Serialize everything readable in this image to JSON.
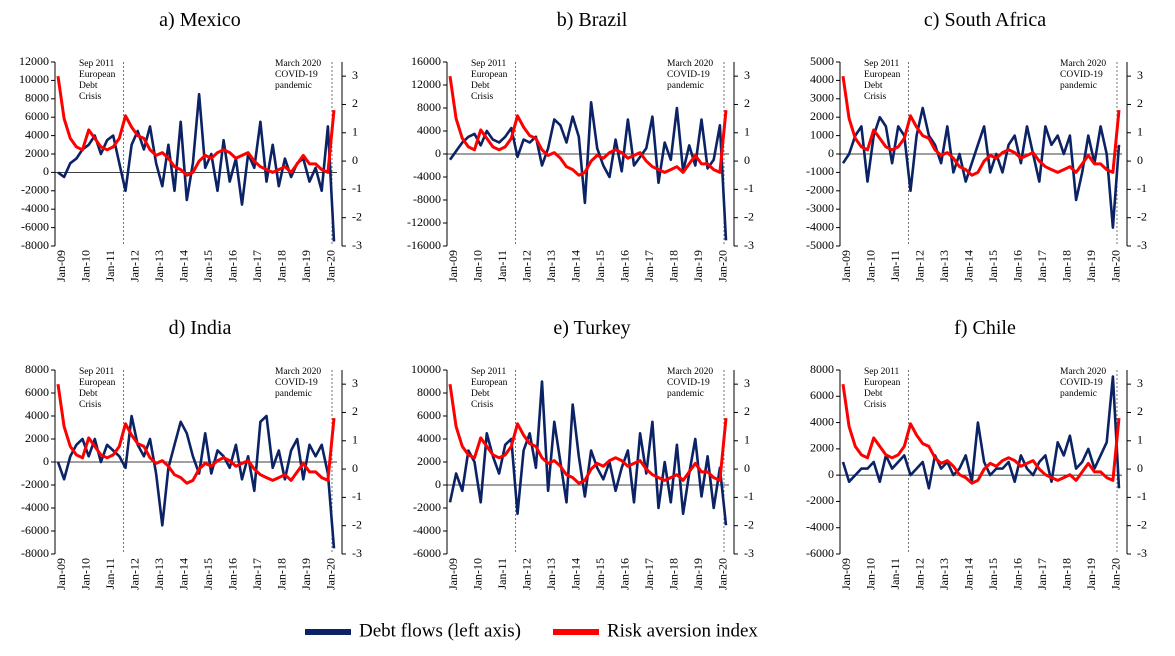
{
  "legend": [
    {
      "name": "Debt flows (left axis)",
      "color": "#0b2265"
    },
    {
      "name": "Risk aversion index",
      "color": "#ff0000"
    }
  ],
  "chart_data": [
    {
      "type": "line",
      "title": "a) Mexico",
      "categories": [
        "Jan-09",
        null,
        null,
        null,
        "Jan-10",
        null,
        null,
        null,
        "Jan-11",
        null,
        null,
        null,
        "Jan-12",
        null,
        null,
        null,
        "Jan-13",
        null,
        null,
        null,
        "Jan-14",
        null,
        null,
        null,
        "Jan-15",
        null,
        null,
        null,
        "Jan-16",
        null,
        null,
        null,
        "Jan-17",
        null,
        null,
        null,
        "Jan-18",
        null,
        null,
        null,
        "Jan-19",
        null,
        null,
        null,
        "Jan-20",
        null
      ],
      "annotations": [
        [
          "Sep 2011",
          "European",
          "Debt",
          "Crisis"
        ],
        [
          "March 2020",
          "COVID-19",
          "pandemic"
        ]
      ],
      "ylim": [
        -8000,
        12000
      ],
      "yticks": [
        -8000,
        -6000,
        -4000,
        -2000,
        0,
        2000,
        4000,
        6000,
        8000,
        10000,
        12000
      ],
      "y2lim": [
        -3,
        3.5
      ],
      "y2ticks": [
        -3,
        -2,
        -1,
        0,
        1,
        2,
        3
      ],
      "series": [
        {
          "values": [
            0,
            -500,
            1000,
            1500,
            2500,
            3000,
            4000,
            2000,
            3500,
            4000,
            1000,
            -2000,
            3000,
            4500,
            2500,
            5000,
            1000,
            -1500,
            3000,
            -2000,
            5500,
            -3000,
            1000,
            8500,
            500,
            2000,
            -2000,
            3500,
            -1000,
            1500,
            -3500,
            2000,
            500,
            5500,
            -1000,
            3000,
            -1500,
            1500,
            -500,
            1000,
            1500,
            -1000,
            500,
            -2000,
            5000,
            -7500
          ]
        },
        {
          "axis": "y2",
          "values": [
            3.0,
            1.5,
            0.8,
            0.5,
            0.4,
            1.1,
            0.8,
            0.5,
            0.4,
            0.5,
            0.8,
            1.6,
            1.2,
            0.9,
            0.8,
            0.4,
            0.2,
            0.3,
            0.1,
            -0.2,
            -0.3,
            -0.5,
            -0.4,
            0.0,
            0.2,
            0.1,
            0.3,
            0.4,
            0.3,
            0.1,
            0.2,
            0.3,
            0.0,
            -0.2,
            -0.3,
            -0.4,
            -0.3,
            -0.2,
            -0.4,
            -0.1,
            0.2,
            -0.1,
            -0.1,
            -0.3,
            -0.4,
            1.8
          ]
        }
      ]
    },
    {
      "type": "line",
      "title": "b) Brazil",
      "categories": [
        "Jan-09",
        null,
        null,
        null,
        "Jan-10",
        null,
        null,
        null,
        "Jan-11",
        null,
        null,
        null,
        "Jan-12",
        null,
        null,
        null,
        "Jan-13",
        null,
        null,
        null,
        "Jan-14",
        null,
        null,
        null,
        "Jan-15",
        null,
        null,
        null,
        "Jan-16",
        null,
        null,
        null,
        "Jan-17",
        null,
        null,
        null,
        "Jan-18",
        null,
        null,
        null,
        "Jan-19",
        null,
        null,
        null,
        "Jan-20",
        null
      ],
      "annotations": [
        [
          "Sep 2011",
          "European",
          "Debt",
          "Crisis"
        ],
        [
          "March 2020",
          "COVID-19",
          "pandemic"
        ]
      ],
      "ylim": [
        -16000,
        16000
      ],
      "yticks": [
        -16000,
        -12000,
        -8000,
        -4000,
        0,
        4000,
        8000,
        12000,
        16000
      ],
      "y2lim": [
        -3,
        3.5
      ],
      "y2ticks": [
        -3,
        -2,
        -1,
        0,
        1,
        2,
        3
      ],
      "series": [
        {
          "values": [
            -1000,
            500,
            2000,
            3000,
            3500,
            1500,
            4000,
            2500,
            2000,
            3000,
            4500,
            -500,
            2500,
            2000,
            3000,
            -2000,
            1000,
            6000,
            5000,
            2000,
            6500,
            3000,
            -8500,
            9000,
            1000,
            -2000,
            -4000,
            2500,
            -3000,
            6000,
            -2000,
            -500,
            1000,
            6500,
            -5000,
            2000,
            -1000,
            8000,
            -3000,
            1500,
            -2000,
            6000,
            -2500,
            -1000,
            5000,
            -15000
          ]
        },
        {
          "axis": "y2",
          "values": [
            3.0,
            1.5,
            0.8,
            0.5,
            0.4,
            1.1,
            0.8,
            0.5,
            0.4,
            0.5,
            0.8,
            1.6,
            1.2,
            0.9,
            0.8,
            0.4,
            0.2,
            0.3,
            0.1,
            -0.2,
            -0.3,
            -0.5,
            -0.4,
            0.0,
            0.2,
            0.1,
            0.3,
            0.4,
            0.3,
            0.1,
            0.2,
            0.3,
            0.0,
            -0.2,
            -0.3,
            -0.4,
            -0.3,
            -0.2,
            -0.4,
            -0.1,
            0.2,
            -0.1,
            -0.1,
            -0.3,
            -0.4,
            1.8
          ]
        }
      ]
    },
    {
      "type": "line",
      "title": "c) South Africa",
      "categories": [
        "Jan-09",
        null,
        null,
        null,
        "Jan-10",
        null,
        null,
        null,
        "Jan-11",
        null,
        null,
        null,
        "Jan-12",
        null,
        null,
        null,
        "Jan-13",
        null,
        null,
        null,
        "Jan-14",
        null,
        null,
        null,
        "Jan-15",
        null,
        null,
        null,
        "Jan-16",
        null,
        null,
        null,
        "Jan-17",
        null,
        null,
        null,
        "Jan-18",
        null,
        null,
        null,
        "Jan-19",
        null,
        null,
        null,
        "Jan-20",
        null
      ],
      "annotations": [
        [
          "Sep 2011",
          "European",
          "Debt",
          "Crisis"
        ],
        [
          "March 2020",
          "COVID-19",
          "pandemic"
        ]
      ],
      "ylim": [
        -5000,
        5000
      ],
      "yticks": [
        -5000,
        -4000,
        -3000,
        -2000,
        -1000,
        0,
        1000,
        2000,
        3000,
        4000,
        5000
      ],
      "y2lim": [
        -3,
        3.5
      ],
      "y2ticks": [
        -3,
        -2,
        -1,
        0,
        1,
        2,
        3
      ],
      "series": [
        {
          "values": [
            -500,
            0,
            1000,
            1500,
            -1500,
            1000,
            2000,
            1500,
            -500,
            1500,
            1000,
            -2000,
            1000,
            2500,
            1000,
            500,
            -500,
            1500,
            -1000,
            0,
            -1500,
            -500,
            500,
            1500,
            -1000,
            0,
            -1000,
            500,
            1000,
            -500,
            1500,
            0,
            -1500,
            1500,
            500,
            1000,
            0,
            1000,
            -2500,
            -1000,
            1000,
            -500,
            1500,
            0,
            -4000,
            500
          ]
        },
        {
          "axis": "y2",
          "values": [
            3.0,
            1.5,
            0.8,
            0.5,
            0.4,
            1.1,
            0.8,
            0.5,
            0.4,
            0.5,
            0.8,
            1.6,
            1.2,
            0.9,
            0.8,
            0.4,
            0.2,
            0.3,
            0.1,
            -0.2,
            -0.3,
            -0.5,
            -0.4,
            0.0,
            0.2,
            0.1,
            0.3,
            0.4,
            0.3,
            0.1,
            0.2,
            0.3,
            0.0,
            -0.2,
            -0.3,
            -0.4,
            -0.3,
            -0.2,
            -0.4,
            -0.1,
            0.2,
            -0.1,
            -0.1,
            -0.3,
            -0.4,
            1.8
          ]
        }
      ]
    },
    {
      "type": "line",
      "title": "d) India",
      "categories": [
        "Jan-09",
        null,
        null,
        null,
        "Jan-10",
        null,
        null,
        null,
        "Jan-11",
        null,
        null,
        null,
        "Jan-12",
        null,
        null,
        null,
        "Jan-13",
        null,
        null,
        null,
        "Jan-14",
        null,
        null,
        null,
        "Jan-15",
        null,
        null,
        null,
        "Jan-16",
        null,
        null,
        null,
        "Jan-17",
        null,
        null,
        null,
        "Jan-18",
        null,
        null,
        null,
        "Jan-19",
        null,
        null,
        null,
        "Jan-20",
        null
      ],
      "annotations": [
        [
          "Sep 2011",
          "European",
          "Debt",
          "Crisis"
        ],
        [
          "March 2020",
          "COVID-19",
          "pandemic"
        ]
      ],
      "ylim": [
        -8000,
        8000
      ],
      "yticks": [
        -8000,
        -6000,
        -4000,
        -2000,
        0,
        2000,
        4000,
        6000,
        8000
      ],
      "y2lim": [
        -3,
        3.5
      ],
      "y2ticks": [
        -3,
        -2,
        -1,
        0,
        1,
        2,
        3
      ],
      "series": [
        {
          "values": [
            0,
            -1500,
            500,
            1500,
            2000,
            500,
            2000,
            0,
            1500,
            1000,
            500,
            -500,
            4000,
            1500,
            500,
            2000,
            -1000,
            -5500,
            -500,
            1500,
            3500,
            2500,
            500,
            -1000,
            2500,
            -1000,
            1000,
            500,
            -500,
            1500,
            -1500,
            500,
            -2500,
            3500,
            4000,
            -500,
            1000,
            -1500,
            1000,
            2000,
            -1500,
            1500,
            500,
            1500,
            -1000,
            -7500
          ]
        },
        {
          "axis": "y2",
          "values": [
            3.0,
            1.5,
            0.8,
            0.5,
            0.4,
            1.1,
            0.8,
            0.5,
            0.4,
            0.5,
            0.8,
            1.6,
            1.2,
            0.9,
            0.8,
            0.4,
            0.2,
            0.3,
            0.1,
            -0.2,
            -0.3,
            -0.5,
            -0.4,
            0.0,
            0.2,
            0.1,
            0.3,
            0.4,
            0.3,
            0.1,
            0.2,
            0.3,
            0.0,
            -0.2,
            -0.3,
            -0.4,
            -0.3,
            -0.2,
            -0.4,
            -0.1,
            0.2,
            -0.1,
            -0.1,
            -0.3,
            -0.4,
            1.8
          ]
        }
      ]
    },
    {
      "type": "line",
      "title": "e) Turkey",
      "categories": [
        "Jan-09",
        null,
        null,
        null,
        "Jan-10",
        null,
        null,
        null,
        "Jan-11",
        null,
        null,
        null,
        "Jan-12",
        null,
        null,
        null,
        "Jan-13",
        null,
        null,
        null,
        "Jan-14",
        null,
        null,
        null,
        "Jan-15",
        null,
        null,
        null,
        "Jan-16",
        null,
        null,
        null,
        "Jan-17",
        null,
        null,
        null,
        "Jan-18",
        null,
        null,
        null,
        "Jan-19",
        null,
        null,
        null,
        "Jan-20",
        null
      ],
      "annotations": [
        [
          "Sep 2011",
          "European",
          "Debt",
          "Crisis"
        ],
        [
          "March 2020",
          "COVID-19",
          "pandemic"
        ]
      ],
      "ylim": [
        -6000,
        10000
      ],
      "yticks": [
        -6000,
        -4000,
        -2000,
        0,
        2000,
        4000,
        6000,
        8000,
        10000
      ],
      "y2lim": [
        -3,
        3.5
      ],
      "y2ticks": [
        -3,
        -2,
        -1,
        0,
        1,
        2,
        3
      ],
      "series": [
        {
          "values": [
            -1500,
            1000,
            -500,
            3000,
            2000,
            -1500,
            4500,
            2500,
            1000,
            3500,
            4000,
            -2500,
            3000,
            4500,
            1500,
            9000,
            -500,
            5500,
            2000,
            -1500,
            7000,
            2500,
            -1000,
            3000,
            1500,
            500,
            2000,
            -500,
            1500,
            3000,
            -1500,
            4500,
            1000,
            5500,
            -2000,
            2000,
            -1500,
            3500,
            -2500,
            1000,
            4000,
            -1000,
            2500,
            -2000,
            1500,
            -3500
          ]
        },
        {
          "axis": "y2",
          "values": [
            3.0,
            1.5,
            0.8,
            0.5,
            0.4,
            1.1,
            0.8,
            0.5,
            0.4,
            0.5,
            0.8,
            1.6,
            1.2,
            0.9,
            0.8,
            0.4,
            0.2,
            0.3,
            0.1,
            -0.2,
            -0.3,
            -0.5,
            -0.4,
            0.0,
            0.2,
            0.1,
            0.3,
            0.4,
            0.3,
            0.1,
            0.2,
            0.3,
            0.0,
            -0.2,
            -0.3,
            -0.4,
            -0.3,
            -0.2,
            -0.4,
            -0.1,
            0.2,
            -0.1,
            -0.1,
            -0.3,
            -0.4,
            1.8
          ]
        }
      ]
    },
    {
      "type": "line",
      "title": "f) Chile",
      "categories": [
        "Jan-09",
        null,
        null,
        null,
        "Jan-10",
        null,
        null,
        null,
        "Jan-11",
        null,
        null,
        null,
        "Jan-12",
        null,
        null,
        null,
        "Jan-13",
        null,
        null,
        null,
        "Jan-14",
        null,
        null,
        null,
        "Jan-15",
        null,
        null,
        null,
        "Jan-16",
        null,
        null,
        null,
        "Jan-17",
        null,
        null,
        null,
        "Jan-18",
        null,
        null,
        null,
        "Jan-19",
        null,
        null,
        null,
        "Jan-20",
        null
      ],
      "annotations": [
        [
          "Sep 2011",
          "European",
          "Debt",
          "Crisis"
        ],
        [
          "March 2020",
          "COVID-19",
          "pandemic"
        ]
      ],
      "ylim": [
        -6000,
        8000
      ],
      "yticks": [
        -6000,
        -4000,
        -2000,
        0,
        2000,
        4000,
        6000,
        8000
      ],
      "y2lim": [
        -3,
        3.5
      ],
      "y2ticks": [
        -3,
        -2,
        -1,
        0,
        1,
        2,
        3
      ],
      "series": [
        {
          "values": [
            1000,
            -500,
            0,
            500,
            500,
            1000,
            -500,
            1500,
            500,
            1000,
            1500,
            0,
            500,
            1000,
            -1000,
            1500,
            500,
            1000,
            0,
            500,
            1500,
            -500,
            4000,
            1000,
            0,
            500,
            500,
            1000,
            -500,
            1500,
            500,
            0,
            1000,
            1500,
            -500,
            2500,
            1500,
            3000,
            500,
            1000,
            2000,
            500,
            1500,
            2500,
            7500,
            -1000
          ]
        },
        {
          "axis": "y2",
          "values": [
            3.0,
            1.5,
            0.8,
            0.5,
            0.4,
            1.1,
            0.8,
            0.5,
            0.4,
            0.5,
            0.8,
            1.6,
            1.2,
            0.9,
            0.8,
            0.4,
            0.2,
            0.3,
            0.1,
            -0.2,
            -0.3,
            -0.5,
            -0.4,
            0.0,
            0.2,
            0.1,
            0.3,
            0.4,
            0.3,
            0.1,
            0.2,
            0.3,
            0.0,
            -0.2,
            -0.3,
            -0.4,
            -0.3,
            -0.2,
            -0.4,
            -0.1,
            0.2,
            -0.1,
            -0.1,
            -0.3,
            -0.4,
            1.8
          ]
        }
      ]
    }
  ]
}
